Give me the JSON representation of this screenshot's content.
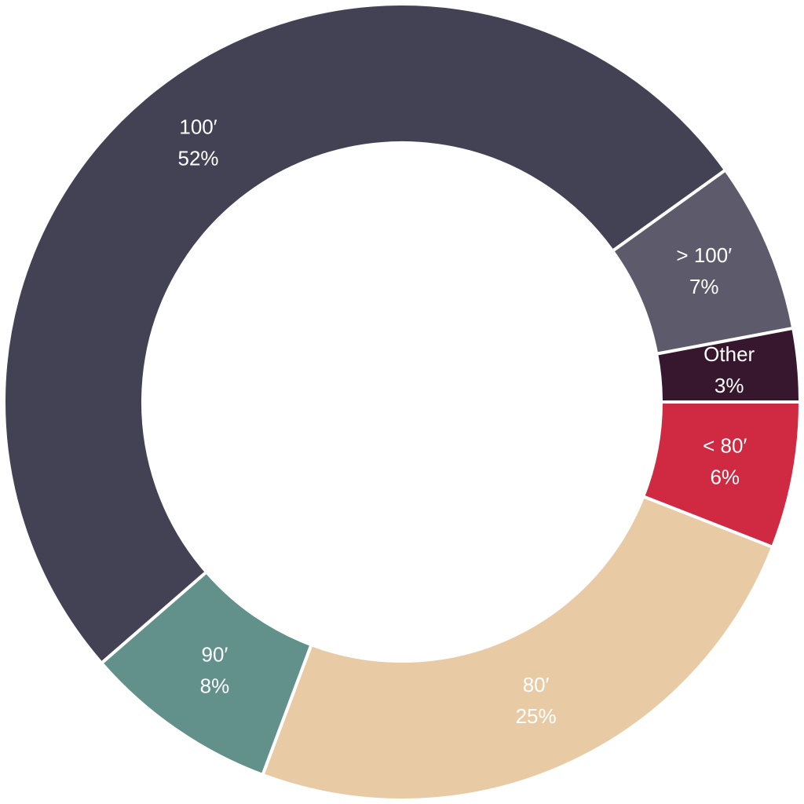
{
  "chart_data": {
    "type": "donut",
    "categories": [
      "< 80′",
      "80′",
      "90′",
      "100′",
      "> 100′",
      "Other"
    ],
    "values": [
      6,
      25,
      8,
      52,
      7,
      3
    ],
    "value_labels": [
      "6%",
      "25%",
      "8%",
      "52%",
      "7%",
      "3%"
    ],
    "colors": [
      "#d02a42",
      "#e8cba5",
      "#62908a",
      "#434154",
      "#5d5b6b",
      "#36172e"
    ]
  }
}
